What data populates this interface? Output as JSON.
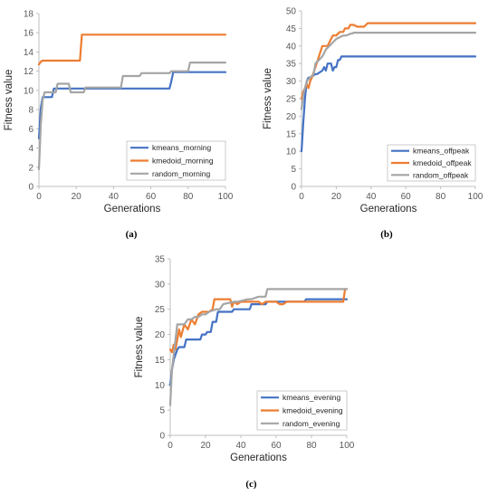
{
  "colors": {
    "kmeans": "#4472c4",
    "kmedoid": "#ed7d31",
    "random": "#a5a5a5"
  },
  "chart_data": [
    {
      "type": "line",
      "id": "a",
      "caption": "(a)",
      "xlabel": "Generations",
      "ylabel": "Fitness value",
      "xlim": [
        0,
        100
      ],
      "ylim": [
        0,
        18
      ],
      "xticks": [
        0,
        20,
        40,
        60,
        80,
        100
      ],
      "yticks": [
        0,
        2,
        4,
        6,
        8,
        10,
        12,
        14,
        16,
        18
      ],
      "grid": false,
      "legend": "bottom-right",
      "series": [
        {
          "name": "kmeans_morning",
          "color": "#4472c4",
          "x": [
            0,
            1,
            2,
            3,
            7,
            8,
            70,
            71,
            72,
            100
          ],
          "y": [
            5,
            8.2,
            9.3,
            9.3,
            9.3,
            10.2,
            10.2,
            11,
            11.9,
            11.9
          ]
        },
        {
          "name": "kmedoid_morning",
          "color": "#ed7d31",
          "x": [
            0,
            1,
            2,
            22,
            23,
            100
          ],
          "y": [
            12.7,
            13,
            13.1,
            13.1,
            15.8,
            15.8
          ]
        },
        {
          "name": "random_morning",
          "color": "#a5a5a5",
          "x": [
            0,
            1,
            2,
            3,
            9,
            10,
            16,
            17,
            24,
            25,
            44,
            45,
            54,
            55,
            70,
            71,
            80,
            81,
            100
          ],
          "y": [
            1.8,
            6.5,
            9,
            9.8,
            9.8,
            10.7,
            10.7,
            9.8,
            9.8,
            10.3,
            10.3,
            11.5,
            11.5,
            11.8,
            11.8,
            12,
            12,
            12.9,
            12.9
          ]
        }
      ]
    },
    {
      "type": "line",
      "id": "b",
      "caption": "(b)",
      "xlabel": "Generations",
      "ylabel": "Fitness value",
      "xlim": [
        0,
        100
      ],
      "ylim": [
        0,
        50
      ],
      "xticks": [
        0,
        20,
        40,
        60,
        80,
        100
      ],
      "yticks": [
        0,
        5,
        10,
        15,
        20,
        25,
        30,
        35,
        40,
        45,
        50
      ],
      "grid": false,
      "legend": "bottom-right",
      "series": [
        {
          "name": "kmeans_offpeak",
          "color": "#4472c4",
          "x": [
            0,
            1,
            2,
            3,
            4,
            5,
            8,
            9,
            12,
            13,
            14,
            15,
            17,
            18,
            19,
            20,
            21,
            22,
            23,
            100
          ],
          "y": [
            10,
            18,
            25,
            30,
            31,
            31,
            32,
            32,
            33,
            34,
            33,
            35,
            35,
            33,
            34,
            34,
            36,
            36,
            37,
            37
          ]
        },
        {
          "name": "kmedoid_offpeak",
          "color": "#ed7d31",
          "x": [
            0,
            1,
            2,
            3,
            4,
            5,
            6,
            8,
            10,
            12,
            15,
            16,
            18,
            20,
            22,
            24,
            25,
            27,
            28,
            29,
            30,
            32,
            34,
            36,
            38,
            40,
            100
          ],
          "y": [
            25,
            27,
            28,
            29,
            28,
            30,
            31,
            34,
            37,
            40,
            40,
            41,
            43,
            43,
            44,
            44,
            45,
            45,
            46,
            46,
            46,
            45.5,
            45.5,
            45.5,
            46.5,
            46.5,
            46.5
          ]
        },
        {
          "name": "random_offpeak",
          "color": "#a5a5a5",
          "x": [
            0,
            1,
            2,
            3,
            5,
            7,
            8,
            10,
            12,
            14,
            16,
            18,
            20,
            22,
            24,
            26,
            28,
            29,
            30,
            100
          ],
          "y": [
            22,
            26,
            28,
            30,
            31,
            32,
            35,
            36,
            37,
            39,
            40,
            41,
            42,
            42.5,
            43,
            43,
            43.5,
            43.5,
            43.8,
            43.8
          ]
        }
      ]
    },
    {
      "type": "line",
      "id": "c",
      "caption": "(c)",
      "xlabel": "Generations",
      "ylabel": "Fitness value",
      "xlim": [
        0,
        100
      ],
      "ylim": [
        0,
        35
      ],
      "xticks": [
        0,
        20,
        40,
        60,
        80,
        100
      ],
      "yticks": [
        0,
        5,
        10,
        15,
        20,
        25,
        30,
        35
      ],
      "grid": false,
      "legend": "bottom-right",
      "series": [
        {
          "name": "kmeans_evening",
          "color": "#4472c4",
          "x": [
            0,
            1,
            2,
            3,
            4,
            5,
            8,
            9,
            17,
            18,
            20,
            21,
            23,
            24,
            26,
            27,
            35,
            36,
            45,
            46,
            54,
            55,
            76,
            77,
            100
          ],
          "y": [
            10,
            13,
            15,
            16,
            17,
            17.5,
            17.5,
            19,
            19,
            20,
            20,
            20.5,
            20.5,
            22.5,
            22.5,
            24.5,
            24.5,
            25,
            25,
            26,
            26,
            26.5,
            26.5,
            27,
            27
          ]
        },
        {
          "name": "kmedoid_evening",
          "color": "#ed7d31",
          "x": [
            0,
            1,
            2,
            3,
            4,
            5,
            6,
            8,
            10,
            12,
            14,
            16,
            18,
            20,
            22,
            24,
            25,
            26,
            34,
            35,
            36,
            38,
            40,
            50,
            52,
            54,
            56,
            60,
            62,
            64,
            66,
            98,
            99,
            100
          ],
          "y": [
            17,
            16.5,
            18,
            17,
            19,
            21,
            19.5,
            22,
            21,
            23,
            22,
            24,
            24.5,
            24.5,
            24.5,
            25,
            27,
            27,
            27,
            25.5,
            26.5,
            26,
            26.5,
            26.5,
            26,
            26.5,
            26.5,
            26.5,
            26,
            26,
            26.5,
            26.5,
            29,
            29
          ]
        },
        {
          "name": "random_evening",
          "color": "#a5a5a5",
          "x": [
            0,
            1,
            2,
            3,
            4,
            5,
            8,
            10,
            12,
            14,
            16,
            18,
            20,
            22,
            26,
            28,
            30,
            36,
            38,
            44,
            46,
            50,
            54,
            55,
            56,
            70,
            100
          ],
          "y": [
            6,
            13,
            16,
            19,
            22,
            22,
            22,
            23,
            23,
            23.5,
            23.5,
            24,
            24,
            24.5,
            25,
            25,
            26,
            26.5,
            26.5,
            27,
            27,
            27.5,
            27.5,
            29,
            29,
            29,
            29
          ]
        }
      ]
    }
  ]
}
